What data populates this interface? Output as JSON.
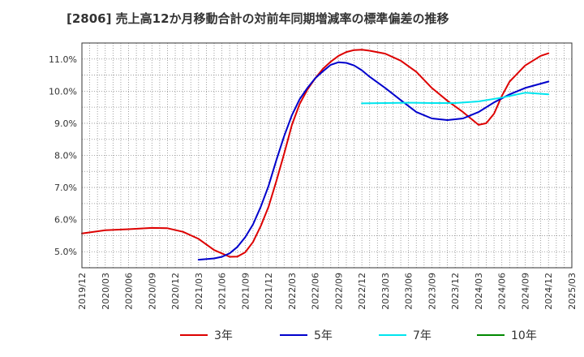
{
  "chart_data": {
    "type": "line",
    "title": "[2806]  売上高12か月移動合計の対前年同期増減率の標準偏差の推移",
    "x_ticks": [
      "2019/12",
      "2020/03",
      "2020/06",
      "2020/09",
      "2020/12",
      "2021/03",
      "2021/06",
      "2021/09",
      "2021/12",
      "2022/03",
      "2022/06",
      "2022/09",
      "2022/12",
      "2023/03",
      "2023/06",
      "2023/09",
      "2023/12",
      "2024/03",
      "2024/06",
      "2024/09",
      "2024/12",
      "2025/03"
    ],
    "y_ticks": [
      "5.0%",
      "6.0%",
      "7.0%",
      "8.0%",
      "9.0%",
      "10.0%",
      "11.0%"
    ],
    "xlim": [
      "2019/12",
      "2025/03"
    ],
    "ylim": [
      4.5,
      11.5
    ],
    "grid": true,
    "legend_position": "bottom",
    "series": [
      {
        "name": "3年",
        "color": "#dd0000",
        "x": [
          "2019/12",
          "2020/03",
          "2020/06",
          "2020/09",
          "2020/11",
          "2021/01",
          "2021/03",
          "2021/05",
          "2021/07",
          "2021/08",
          "2021/09",
          "2021/10",
          "2021/11",
          "2021/12",
          "2022/01",
          "2022/02",
          "2022/03",
          "2022/04",
          "2022/05",
          "2022/06",
          "2022/07",
          "2022/08",
          "2022/09",
          "2022/10",
          "2022/11",
          "2022/12",
          "2023/01",
          "2023/03",
          "2023/05",
          "2023/07",
          "2023/09",
          "2023/11",
          "2024/01",
          "2024/03",
          "2024/04",
          "2024/05",
          "2024/06",
          "2024/07",
          "2024/09",
          "2024/11",
          "2024/12"
        ],
        "values": [
          5.57,
          5.67,
          5.7,
          5.74,
          5.73,
          5.62,
          5.4,
          5.05,
          4.84,
          4.85,
          4.98,
          5.3,
          5.8,
          6.4,
          7.2,
          8.05,
          8.95,
          9.6,
          10.05,
          10.4,
          10.7,
          10.92,
          11.1,
          11.22,
          11.28,
          11.29,
          11.26,
          11.17,
          10.95,
          10.6,
          10.1,
          9.7,
          9.35,
          8.95,
          9.0,
          9.3,
          9.85,
          10.3,
          10.8,
          11.1,
          11.18
        ]
      },
      {
        "name": "5年",
        "color": "#0000cc",
        "x": [
          "2021/03",
          "2021/05",
          "2021/06",
          "2021/07",
          "2021/08",
          "2021/09",
          "2021/10",
          "2021/11",
          "2021/12",
          "2022/01",
          "2022/02",
          "2022/03",
          "2022/04",
          "2022/05",
          "2022/06",
          "2022/07",
          "2022/08",
          "2022/09",
          "2022/10",
          "2022/11",
          "2022/12",
          "2023/01",
          "2023/03",
          "2023/05",
          "2023/07",
          "2023/09",
          "2023/11",
          "2024/01",
          "2024/03",
          "2024/05",
          "2024/07",
          "2024/09",
          "2024/12"
        ],
        "values": [
          4.75,
          4.79,
          4.84,
          4.95,
          5.15,
          5.45,
          5.85,
          6.4,
          7.05,
          7.85,
          8.6,
          9.25,
          9.75,
          10.1,
          10.4,
          10.62,
          10.82,
          10.9,
          10.88,
          10.8,
          10.65,
          10.45,
          10.1,
          9.72,
          9.35,
          9.15,
          9.1,
          9.15,
          9.35,
          9.65,
          9.9,
          10.1,
          10.3
        ]
      },
      {
        "name": "7年",
        "color": "#00e5ee",
        "x": [
          "2022/12",
          "2023/03",
          "2023/06",
          "2023/09",
          "2023/12",
          "2024/03",
          "2024/06",
          "2024/09",
          "2024/12"
        ],
        "values": [
          9.62,
          9.63,
          9.64,
          9.63,
          9.63,
          9.68,
          9.8,
          9.95,
          9.9
        ]
      },
      {
        "name": "10年",
        "color": "#008800",
        "x": [],
        "values": []
      }
    ]
  }
}
